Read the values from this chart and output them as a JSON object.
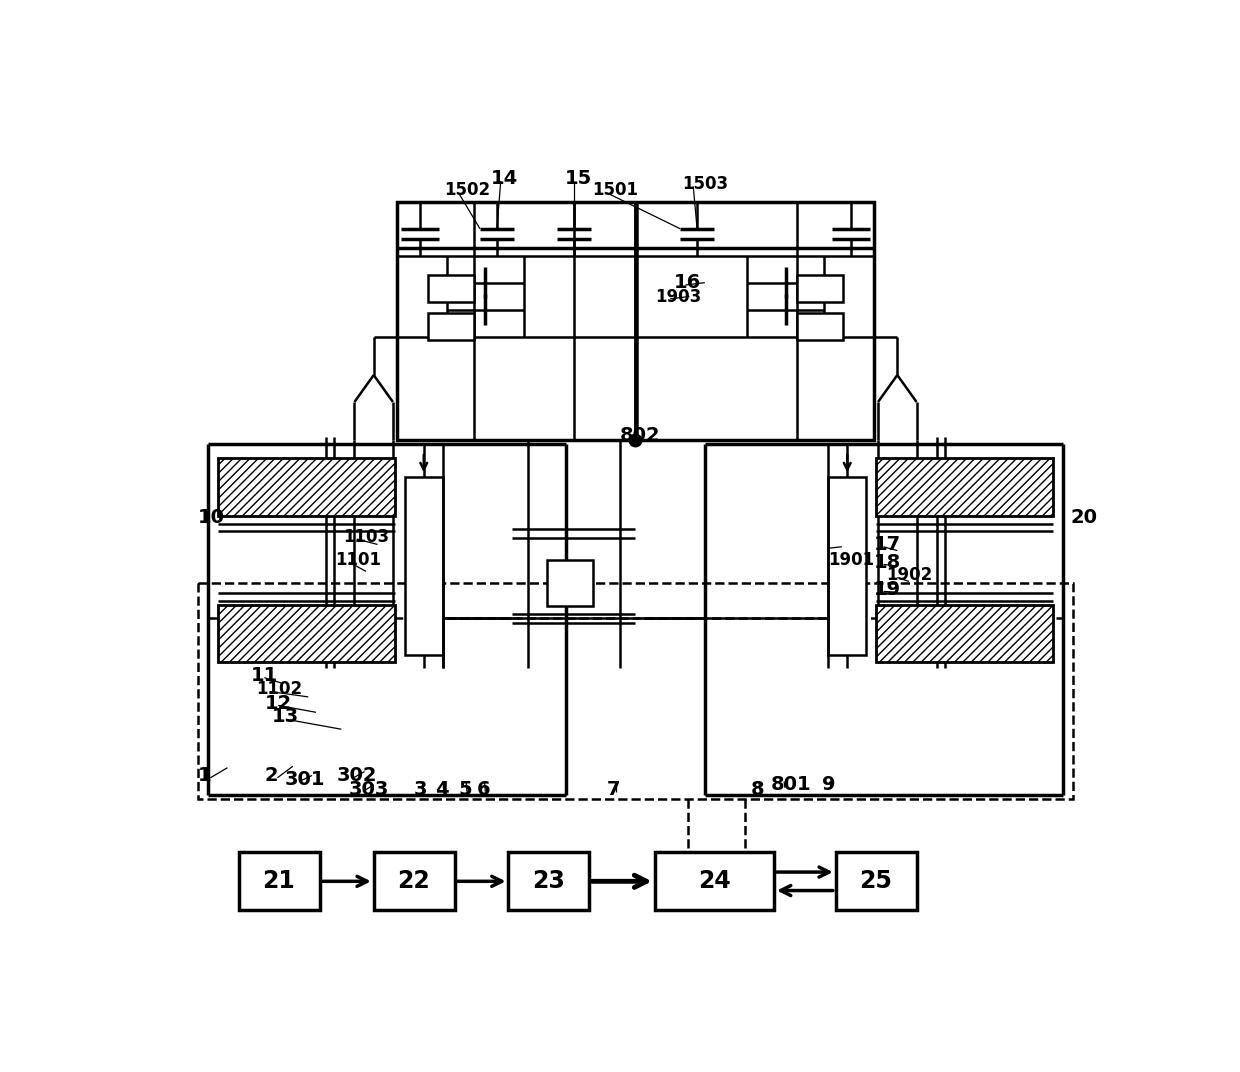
{
  "fig_width": 12.4,
  "fig_height": 10.72,
  "bg_color": "#ffffff"
}
